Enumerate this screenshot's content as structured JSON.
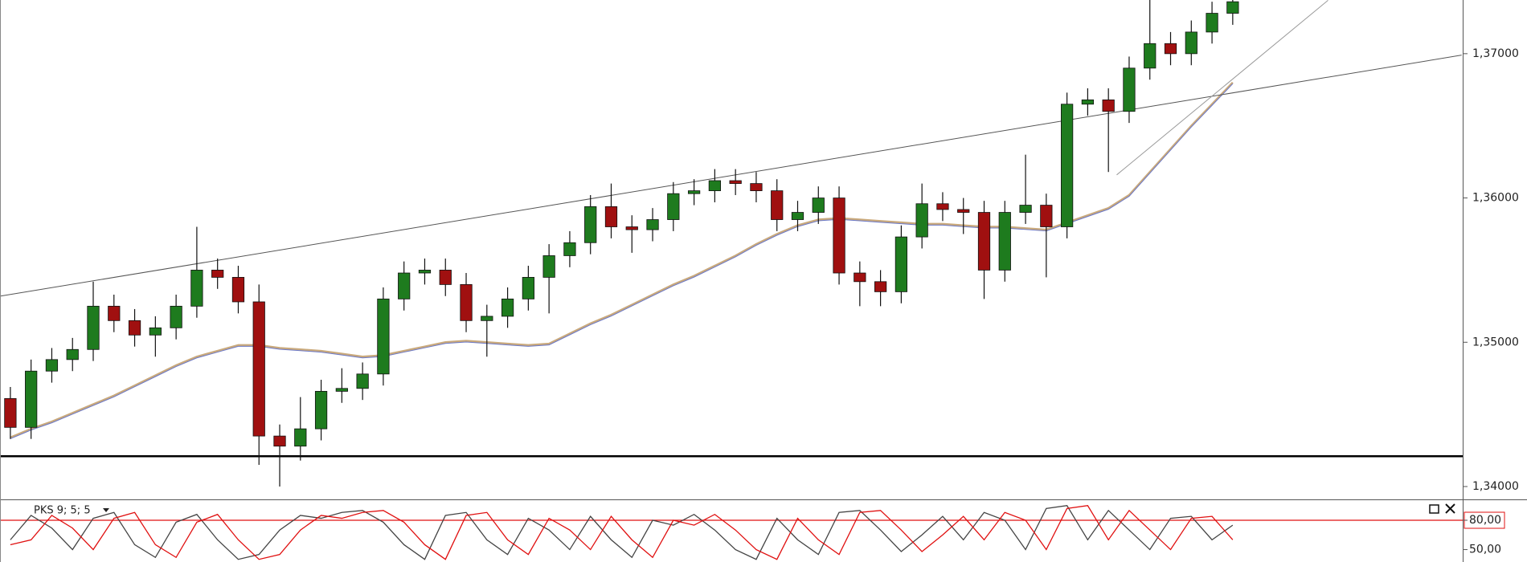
{
  "chart_data": [
    {
      "type": "candlestick",
      "open": [
        1.3461,
        1.3441,
        1.348,
        1.3488,
        1.3495,
        1.3525,
        1.3515,
        1.3505,
        1.351,
        1.3525,
        1.355,
        1.3545,
        1.3528,
        1.3435,
        1.3428,
        1.344,
        1.3466,
        1.3468,
        1.3478,
        1.353,
        1.3548,
        1.355,
        1.354,
        1.3515,
        1.3518,
        1.353,
        1.3545,
        1.356,
        1.3569,
        1.3594,
        1.358,
        1.3578,
        1.3585,
        1.3603,
        1.3605,
        1.3612,
        1.361,
        1.3605,
        1.3585,
        1.359,
        1.36,
        1.3548,
        1.3542,
        1.3535,
        1.3573,
        1.3596,
        1.3592,
        1.359,
        1.355,
        1.359,
        1.3595,
        1.358,
        1.3665,
        1.3668,
        1.366,
        1.369,
        1.3707,
        1.37,
        1.3715,
        1.3728
      ],
      "high": [
        1.3469,
        1.3488,
        1.3496,
        1.3503,
        1.3542,
        1.3533,
        1.3523,
        1.3518,
        1.3533,
        1.358,
        1.3558,
        1.3553,
        1.354,
        1.3443,
        1.3462,
        1.3474,
        1.3482,
        1.3486,
        1.3538,
        1.3556,
        1.3558,
        1.3558,
        1.3548,
        1.3526,
        1.3538,
        1.3553,
        1.3568,
        1.3577,
        1.3602,
        1.361,
        1.3588,
        1.3593,
        1.3611,
        1.3613,
        1.362,
        1.362,
        1.3618,
        1.3613,
        1.3598,
        1.3608,
        1.3608,
        1.3556,
        1.355,
        1.3581,
        1.361,
        1.3604,
        1.36,
        1.3598,
        1.3598,
        1.363,
        1.3603,
        1.3673,
        1.3676,
        1.3676,
        1.3698,
        1.3745,
        1.3715,
        1.3723,
        1.3736,
        1.3744
      ],
      "low": [
        1.3433,
        1.3433,
        1.3472,
        1.348,
        1.3487,
        1.3507,
        1.3497,
        1.349,
        1.3502,
        1.3517,
        1.3537,
        1.352,
        1.3415,
        1.34,
        1.3418,
        1.3432,
        1.3458,
        1.346,
        1.347,
        1.3522,
        1.354,
        1.3532,
        1.3507,
        1.349,
        1.351,
        1.3522,
        1.352,
        1.3552,
        1.3561,
        1.3572,
        1.3562,
        1.357,
        1.3577,
        1.3595,
        1.3597,
        1.3602,
        1.3597,
        1.3577,
        1.3577,
        1.3582,
        1.354,
        1.3525,
        1.3525,
        1.3527,
        1.3565,
        1.3584,
        1.3575,
        1.353,
        1.3542,
        1.3582,
        1.3545,
        1.3572,
        1.3657,
        1.3618,
        1.3652,
        1.3682,
        1.3692,
        1.3692,
        1.3707,
        1.372
      ],
      "close": [
        1.3441,
        1.348,
        1.3488,
        1.3495,
        1.3525,
        1.3515,
        1.3505,
        1.351,
        1.3525,
        1.355,
        1.3545,
        1.3528,
        1.3435,
        1.3428,
        1.344,
        1.3466,
        1.3468,
        1.3478,
        1.353,
        1.3548,
        1.355,
        1.354,
        1.3515,
        1.3518,
        1.353,
        1.3545,
        1.356,
        1.3569,
        1.3594,
        1.358,
        1.3578,
        1.3585,
        1.3603,
        1.3605,
        1.3612,
        1.361,
        1.3605,
        1.3585,
        1.359,
        1.36,
        1.3548,
        1.3542,
        1.3535,
        1.3573,
        1.3596,
        1.3592,
        1.359,
        1.355,
        1.359,
        1.3595,
        1.358,
        1.3665,
        1.3668,
        1.366,
        1.369,
        1.3707,
        1.37,
        1.3715,
        1.3728,
        1.3736
      ],
      "up_color": "#1e7b1e",
      "down_color": "#a01010",
      "moving_average": {
        "color": "#c9a97c",
        "values": [
          1.3434,
          1.344,
          1.3445,
          1.3451,
          1.3457,
          1.3463,
          1.347,
          1.3477,
          1.3484,
          1.349,
          1.3494,
          1.3498,
          1.3498,
          1.3496,
          1.3495,
          1.3494,
          1.3492,
          1.349,
          1.3491,
          1.3494,
          1.3497,
          1.35,
          1.3501,
          1.35,
          1.3499,
          1.3498,
          1.3499,
          1.3506,
          1.3513,
          1.3519,
          1.3526,
          1.3533,
          1.354,
          1.3546,
          1.3553,
          1.356,
          1.3568,
          1.3575,
          1.3581,
          1.3585,
          1.3586,
          1.3585,
          1.3584,
          1.3583,
          1.3582,
          1.3582,
          1.3581,
          1.358,
          1.358,
          1.3579,
          1.3578,
          1.3583,
          1.3588,
          1.3593,
          1.3602,
          1.3618,
          1.3634,
          1.365,
          1.3665,
          1.368
        ]
      },
      "trendlines": [
        {
          "x": [
            -0.47,
            70.05
          ],
          "y": [
            1.3532,
            1.3699
          ],
          "color": "#555555",
          "width": 1
        },
        {
          "x": [
            53.4,
            63.6
          ],
          "y": [
            1.3616,
            1.3737
          ],
          "color": "#999999",
          "width": 1
        },
        {
          "x": [
            -0.5,
            70.1
          ],
          "y": [
            1.3421,
            1.3421
          ],
          "color": "#000000",
          "width": 2.5
        }
      ],
      "xlim": [
        -0.5,
        70.1
      ],
      "ylim": [
        1.33911,
        1.37372
      ],
      "yticks": [
        {
          "value": 1.34,
          "label": "1,34000"
        },
        {
          "value": 1.35,
          "label": "1,35000"
        },
        {
          "value": 1.36,
          "label": "1,36000"
        },
        {
          "value": 1.37,
          "label": "1,37000"
        }
      ]
    },
    {
      "type": "line",
      "title": "PKS 9; 5; 5",
      "series": [
        {
          "color": "#444444",
          "values": [
            60,
            85,
            72,
            50,
            82,
            88,
            55,
            42,
            78,
            86,
            60,
            40,
            45,
            70,
            85,
            82,
            88,
            90,
            78,
            55,
            40,
            85,
            88,
            60,
            45,
            82,
            70,
            50,
            84,
            60,
            42,
            80,
            75,
            86,
            70,
            50,
            40,
            82,
            60,
            45,
            88,
            90,
            70,
            48,
            65,
            84,
            60,
            88,
            80,
            50,
            92,
            95,
            60,
            90,
            70,
            50,
            82,
            84,
            60,
            75
          ]
        },
        {
          "color": "#e01010",
          "values": [
            55,
            60,
            85,
            72,
            50,
            82,
            88,
            55,
            42,
            78,
            86,
            60,
            40,
            45,
            70,
            85,
            82,
            88,
            90,
            78,
            55,
            40,
            85,
            88,
            60,
            45,
            82,
            70,
            50,
            84,
            60,
            42,
            80,
            75,
            86,
            70,
            50,
            40,
            82,
            60,
            45,
            88,
            90,
            70,
            48,
            65,
            84,
            60,
            88,
            80,
            50,
            92,
            95,
            60,
            90,
            70,
            50,
            82,
            84,
            60
          ]
        }
      ],
      "xlim": [
        -0.5,
        70.1
      ],
      "ylim": [
        37.3,
        98.9
      ],
      "yticks": [
        {
          "value": 80,
          "label": "80,00"
        },
        {
          "value": 50,
          "label": "50,00"
        }
      ],
      "highlight_tick": 0,
      "highlight_color": "#e01010"
    }
  ]
}
